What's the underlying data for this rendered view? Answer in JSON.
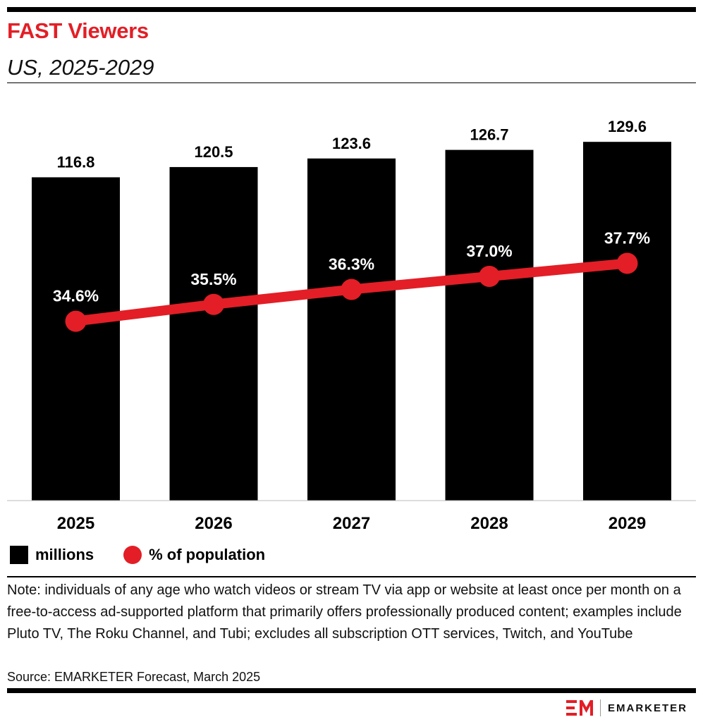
{
  "header": {
    "title": "FAST Viewers",
    "subtitle": "US, 2025-2029"
  },
  "chart_data": {
    "type": "bar",
    "title": "FAST Viewers",
    "subtitle": "US, 2025-2029",
    "categories": [
      "2025",
      "2026",
      "2027",
      "2028",
      "2029"
    ],
    "series": [
      {
        "name": "millions",
        "type": "bar",
        "values": [
          116.8,
          120.5,
          123.6,
          126.7,
          129.6
        ],
        "labels": [
          "116.8",
          "120.5",
          "123.6",
          "126.7",
          "129.6"
        ],
        "color": "#000000",
        "ylim": [
          0,
          135
        ]
      },
      {
        "name": "% of population",
        "type": "line",
        "values": [
          34.6,
          35.5,
          36.3,
          37.0,
          37.7
        ],
        "labels": [
          "34.6%",
          "35.5%",
          "36.3%",
          "37.0%",
          "37.7%"
        ],
        "color": "#e31e26",
        "ylim": [
          25,
          45
        ]
      }
    ],
    "xlabel": "",
    "ylabel": "",
    "legend": "bottom-left",
    "grid": false
  },
  "legend": {
    "bar_label": "millions",
    "line_label": "% of population"
  },
  "footer": {
    "note": "Note: individuals of any age who watch videos or stream TV via app or website at least once per month on a free-to-access ad-supported platform that primarily offers professionally produced content; examples include Pluto TV, The Roku Channel, and Tubi; excludes all subscription OTT services, Twitch, and YouTube",
    "source": "Source: EMARKETER Forecast, March 2025",
    "brand": "EMARKETER"
  },
  "colors": {
    "accent": "#e31e26",
    "bar": "#000000"
  }
}
